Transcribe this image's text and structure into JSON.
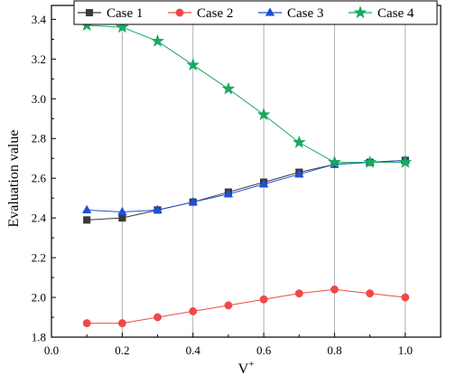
{
  "chart_data": {
    "type": "line",
    "title": "",
    "xlabel": "V",
    "xlabel_superscript": "+",
    "ylabel": "Evaluation value",
    "xlim": [
      0.0,
      1.1
    ],
    "ylim": [
      1.8,
      3.47
    ],
    "xticks": [
      "0.0",
      "0.2",
      "0.4",
      "0.6",
      "0.8",
      "1.0"
    ],
    "yticks": [
      "1.8",
      "2.0",
      "2.2",
      "2.4",
      "2.6",
      "2.8",
      "3.0",
      "3.2",
      "3.4"
    ],
    "grid": "vertical",
    "legend_position": "top",
    "x": [
      0.1,
      0.2,
      0.3,
      0.4,
      0.5,
      0.6,
      0.7,
      0.8,
      0.9,
      1.0
    ],
    "series": [
      {
        "name": "Case 1",
        "color": "#3a3a3a",
        "marker": "square",
        "values": [
          2.39,
          2.4,
          2.44,
          2.48,
          2.53,
          2.58,
          2.63,
          2.67,
          2.68,
          2.69
        ]
      },
      {
        "name": "Case 2",
        "color": "#f04848",
        "marker": "circle",
        "values": [
          1.87,
          1.87,
          1.9,
          1.93,
          1.96,
          1.99,
          2.02,
          2.04,
          2.02,
          2.0
        ]
      },
      {
        "name": "Case 3",
        "color": "#1f4fd6",
        "marker": "triangle",
        "values": [
          2.44,
          2.43,
          2.44,
          2.48,
          2.52,
          2.57,
          2.62,
          2.67,
          2.68,
          2.69
        ]
      },
      {
        "name": "Case 4",
        "color": "#19a860",
        "marker": "star",
        "values": [
          3.37,
          3.36,
          3.29,
          3.17,
          3.05,
          2.92,
          2.78,
          2.68,
          2.68,
          2.68
        ]
      }
    ]
  }
}
